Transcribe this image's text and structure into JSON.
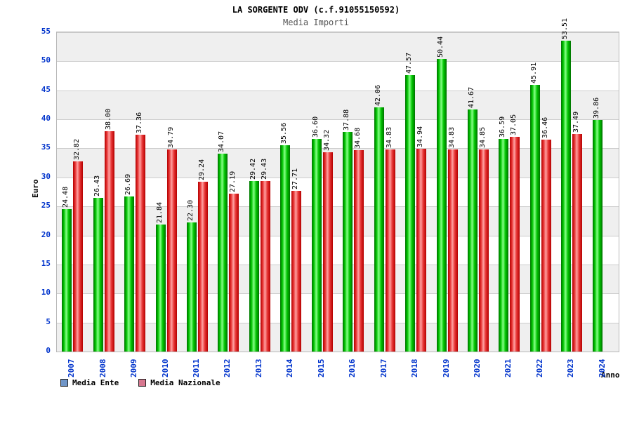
{
  "header": {
    "title": "LA SORGENTE ODV (c.f.91055150592)",
    "subtitle": "Media Importi"
  },
  "chart_data": {
    "type": "bar",
    "title": "LA SORGENTE ODV (c.f.91055150592)",
    "subtitle": "Media Importi",
    "xlabel": "Anno",
    "ylabel": "Euro",
    "ylim": [
      0,
      55
    ],
    "ytick_step": 5,
    "yticks": [
      0,
      5,
      10,
      15,
      20,
      25,
      30,
      35,
      40,
      45,
      50,
      55
    ],
    "grid": true,
    "legend_position": "bottom",
    "axis_tick_color": "#0033cc",
    "value_label_color": "#000000",
    "categories": [
      "2007",
      "2008",
      "2009",
      "2010",
      "2011",
      "2012",
      "2013",
      "2014",
      "2015",
      "2016",
      "2017",
      "2018",
      "2019",
      "2020",
      "2021",
      "2022",
      "2023",
      "2024"
    ],
    "series": [
      {
        "name": "Media Ente",
        "legend_color": "#7096c8",
        "bar_dark": "#007200",
        "bar_mid": "#00c400",
        "bar_light": "#86ff86",
        "values": [
          24.48,
          26.43,
          26.69,
          21.84,
          22.3,
          34.07,
          29.42,
          35.56,
          36.6,
          37.88,
          42.06,
          47.57,
          50.44,
          41.67,
          36.59,
          45.91,
          53.51,
          39.86
        ]
      },
      {
        "name": "Media Nazionale",
        "legend_color": "#d87890",
        "bar_dark": "#b40000",
        "bar_mid": "#e63232",
        "bar_light": "#ffa0a0",
        "values": [
          32.82,
          38.0,
          37.36,
          34.79,
          29.24,
          27.19,
          29.43,
          27.71,
          34.32,
          34.68,
          34.83,
          34.94,
          34.83,
          34.85,
          37.05,
          36.46,
          37.49,
          null
        ]
      }
    ]
  }
}
